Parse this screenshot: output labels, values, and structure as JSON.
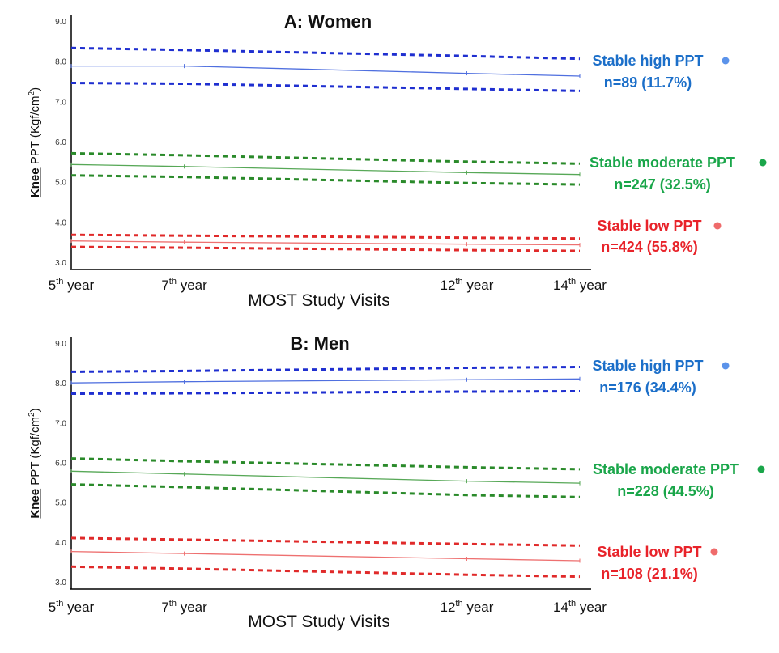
{
  "chart_data": [
    {
      "type": "line",
      "title": "A: Women",
      "ylabel_bold": "Knee",
      "ylabel_rest": " PPT (Kgf/cm",
      "ylabel_sup": "2",
      "ylabel_close": ")",
      "xlabel": "MOST Study Visits",
      "ylim": [
        3.0,
        9.0
      ],
      "yticks": [
        "3.0",
        "4.0",
        "5.0",
        "6.0",
        "7.0",
        "8.0",
        "9.0"
      ],
      "xticks": [
        {
          "base": "5",
          "sup": "th",
          "suffix": " year",
          "x": 5
        },
        {
          "base": "7",
          "sup": "th",
          "suffix": " year",
          "x": 7
        },
        {
          "base": "12",
          "sup": "th",
          "suffix": " year",
          "x": 12
        },
        {
          "base": "14",
          "sup": "th",
          "suffix": " year",
          "x": 14
        }
      ],
      "xlim": [
        5,
        14
      ],
      "series": [
        {
          "name": "Stable high PPT",
          "count": "n=89 (11.7%)",
          "color": "#4f6fdf",
          "ci_color": "#1f2fd0",
          "label_color": "#1c6fc9",
          "dot_color": "#5b93ea",
          "x": [
            5,
            7,
            12,
            14
          ],
          "values": [
            7.9,
            7.9,
            7.72,
            7.65
          ],
          "upper": [
            8.35,
            8.3,
            8.15,
            8.08
          ],
          "lower": [
            7.48,
            7.46,
            7.33,
            7.28
          ]
        },
        {
          "name": "Stable moderate PPT",
          "count": "n=247 (32.5%)",
          "color": "#57a857",
          "ci_color": "#2a8a2a",
          "label_color": "#1aa64a",
          "dot_color": "#1aa64a",
          "x": [
            5,
            7,
            12,
            14
          ],
          "values": [
            5.45,
            5.4,
            5.25,
            5.2
          ],
          "upper": [
            5.73,
            5.68,
            5.52,
            5.47
          ],
          "lower": [
            5.18,
            5.14,
            4.99,
            4.95
          ]
        },
        {
          "name": "Stable low PPT",
          "count": "n=424 (55.8%)",
          "color": "#ee7070",
          "ci_color": "#e02a2a",
          "label_color": "#e8232a",
          "dot_color": "#ef6b6b",
          "x": [
            5,
            7,
            12,
            14
          ],
          "values": [
            3.55,
            3.52,
            3.47,
            3.45
          ],
          "upper": [
            3.7,
            3.68,
            3.63,
            3.61
          ],
          "lower": [
            3.4,
            3.38,
            3.32,
            3.3
          ]
        }
      ]
    },
    {
      "type": "line",
      "title": "B: Men",
      "ylabel_bold": "Knee",
      "ylabel_rest": " PPT (Kgf/cm",
      "ylabel_sup": "2",
      "ylabel_close": ")",
      "xlabel": "MOST Study Visits",
      "ylim": [
        3.0,
        9.0
      ],
      "yticks": [
        "3.0",
        "4.0",
        "5.0",
        "6.0",
        "7.0",
        "8.0",
        "9.0"
      ],
      "xticks": [
        {
          "base": "5",
          "sup": "th",
          "suffix": " year",
          "x": 5
        },
        {
          "base": "7",
          "sup": "th",
          "suffix": " year",
          "x": 7
        },
        {
          "base": "12",
          "sup": "th",
          "suffix": " year",
          "x": 12
        },
        {
          "base": "14",
          "sup": "th",
          "suffix": " year",
          "x": 14
        }
      ],
      "xlim": [
        5,
        14
      ],
      "series": [
        {
          "name": "Stable high PPT",
          "count": "n=176 (34.4%)",
          "color": "#4f6fdf",
          "ci_color": "#1f2fd0",
          "label_color": "#1c6fc9",
          "dot_color": "#5b93ea",
          "x": [
            5,
            7,
            12,
            14
          ],
          "values": [
            8.02,
            8.05,
            8.1,
            8.12
          ],
          "upper": [
            8.3,
            8.32,
            8.4,
            8.42
          ],
          "lower": [
            7.75,
            7.76,
            7.8,
            7.81
          ]
        },
        {
          "name": "Stable moderate PPT",
          "count": "n=228 (44.5%)",
          "color": "#57a857",
          "ci_color": "#2a8a2a",
          "label_color": "#1aa64a",
          "dot_color": "#1aa64a",
          "x": [
            5,
            7,
            12,
            14
          ],
          "values": [
            5.8,
            5.73,
            5.55,
            5.5
          ],
          "upper": [
            6.12,
            6.05,
            5.9,
            5.85
          ],
          "lower": [
            5.47,
            5.4,
            5.2,
            5.15
          ]
        },
        {
          "name": "Stable low PPT",
          "count": "n=108 (21.1%)",
          "color": "#ee7070",
          "ci_color": "#e02a2a",
          "label_color": "#e8232a",
          "dot_color": "#ef6b6b",
          "x": [
            5,
            7,
            12,
            14
          ],
          "values": [
            3.78,
            3.73,
            3.6,
            3.55
          ],
          "upper": [
            4.12,
            4.08,
            3.97,
            3.93
          ],
          "lower": [
            3.4,
            3.35,
            3.2,
            3.15
          ]
        }
      ]
    }
  ]
}
